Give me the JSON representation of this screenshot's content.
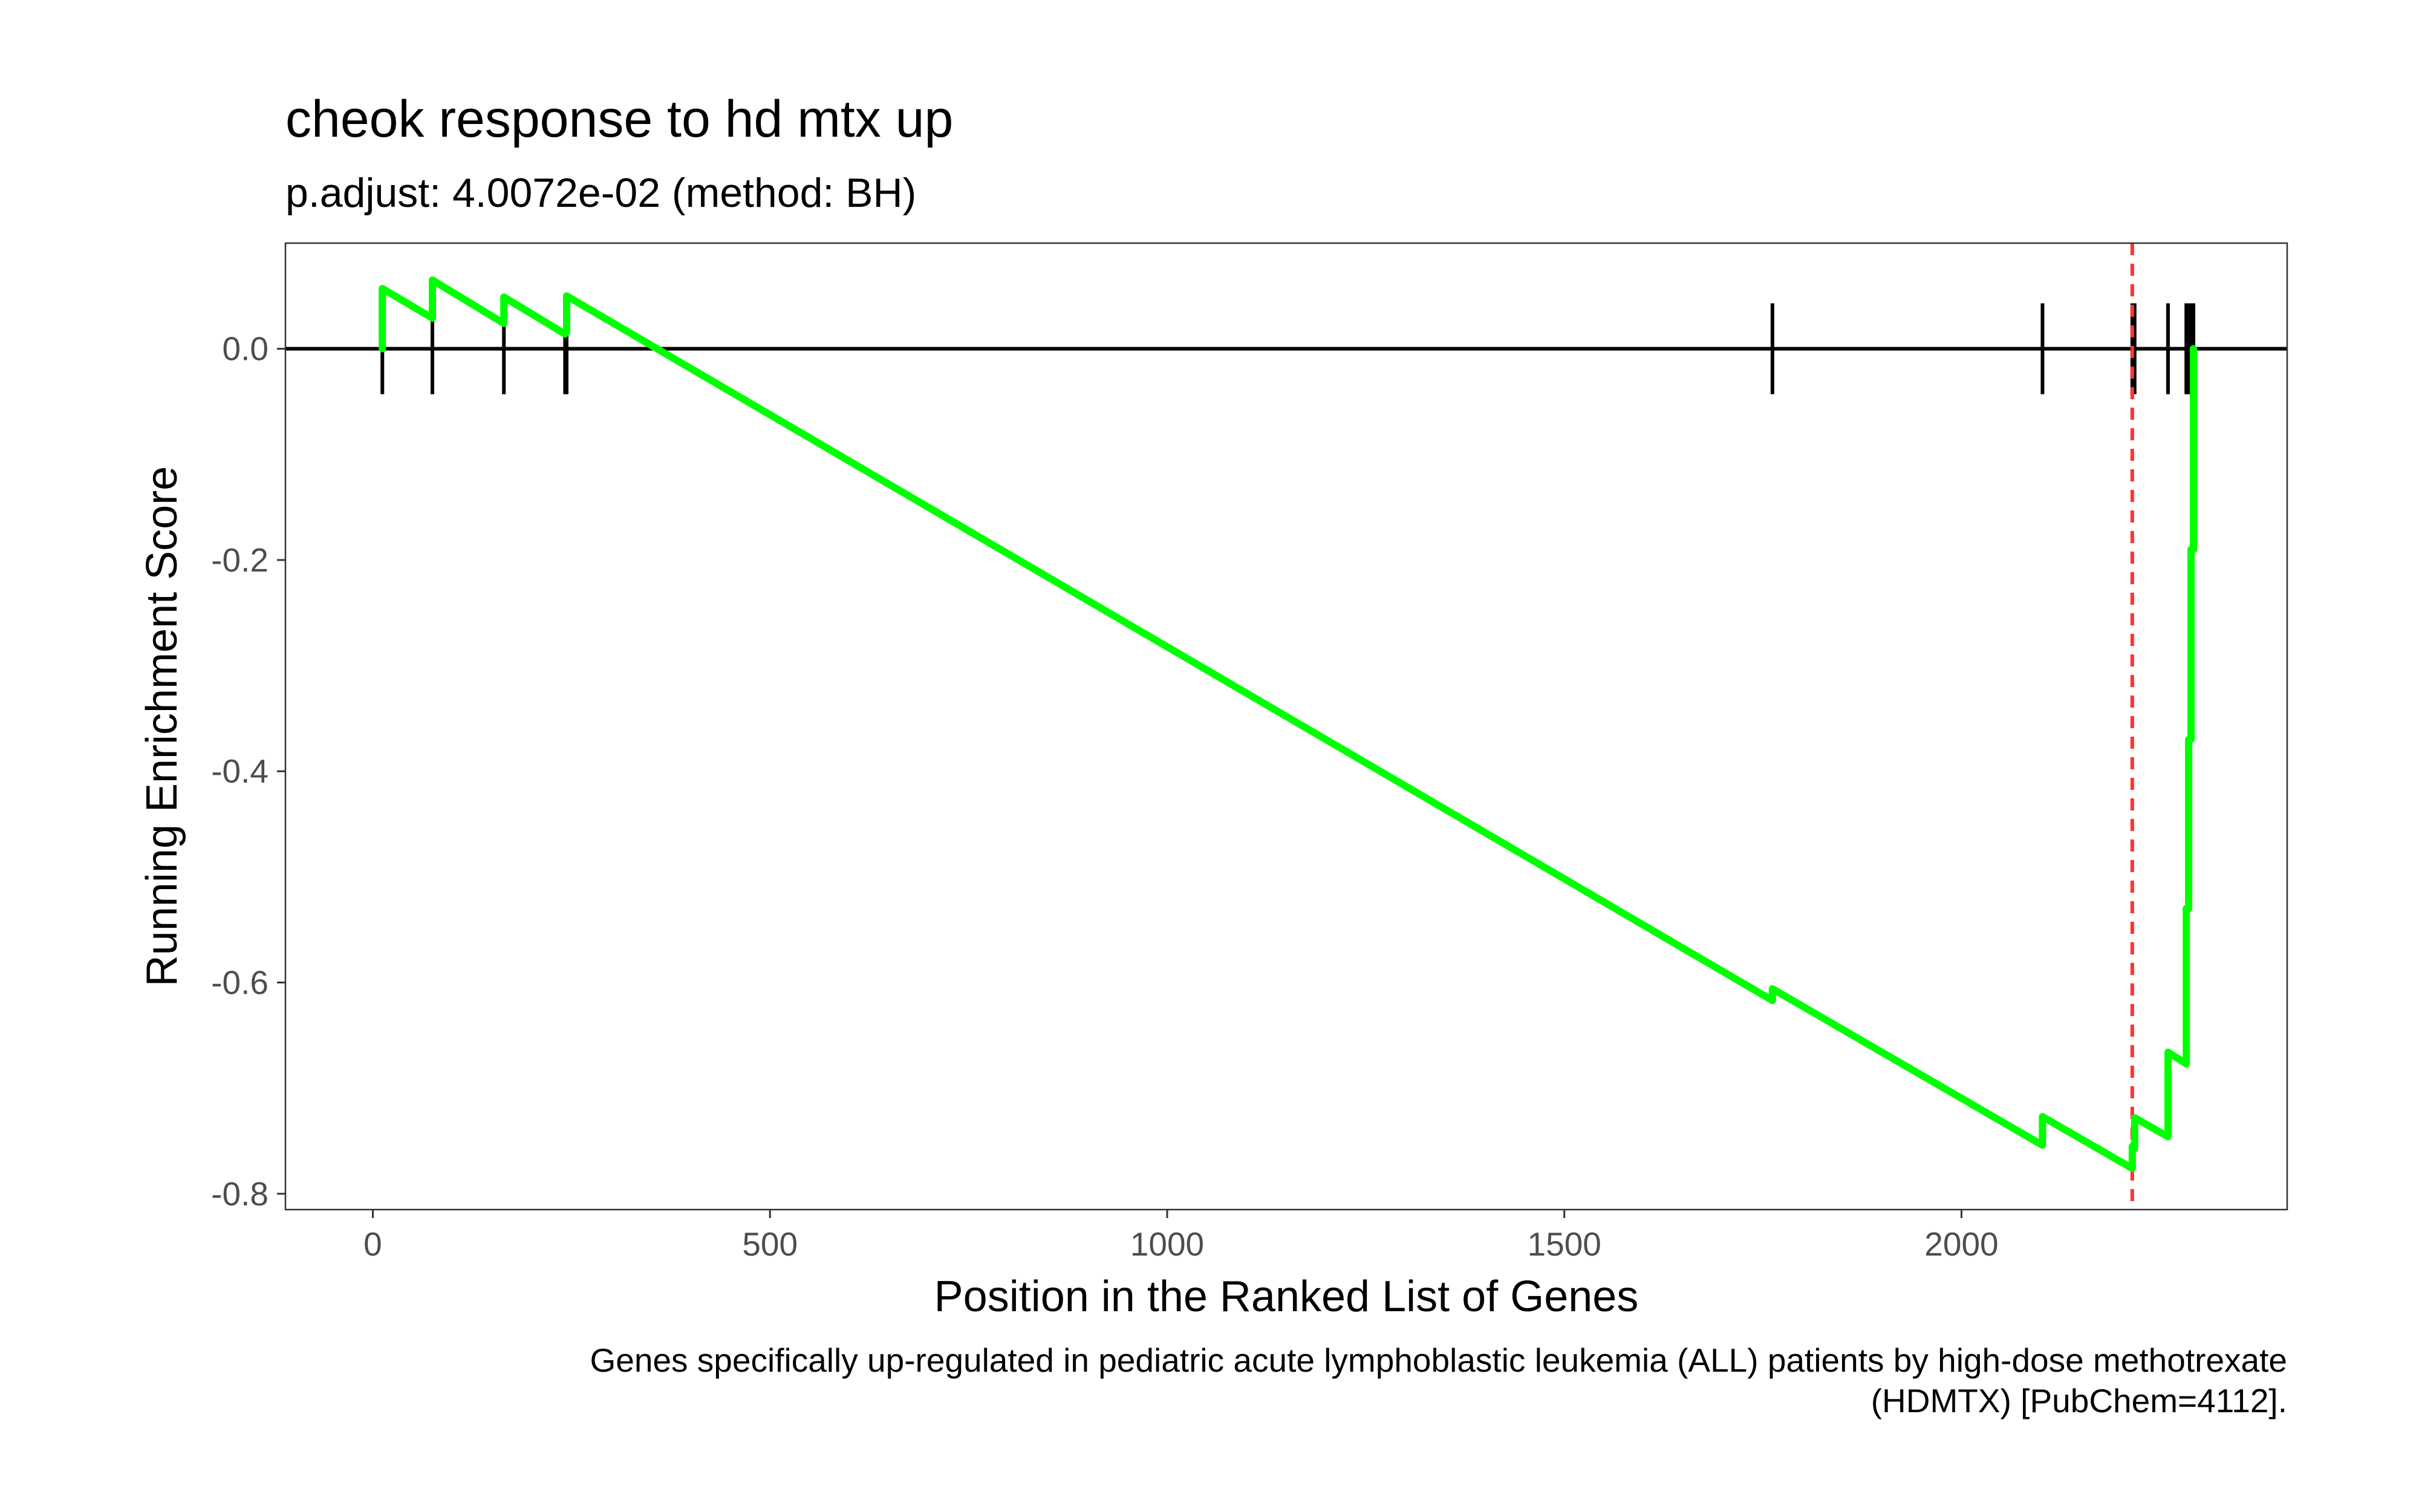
{
  "chart_data": {
    "type": "line",
    "title": "cheok response to hd mtx up",
    "subtitle": "p.adjust: 4.0072e-02 (method: BH)",
    "xlabel": "Position in the Ranked List of Genes",
    "ylabel": "Running Enrichment Score",
    "caption_lines": [
      "Genes specifically up-regulated in pediatric acute lymphoblastic leukemia (ALL) patients by high-dose methotrexate",
      "(HDMTX) [PubChem=4112]."
    ],
    "xlim": [
      -110,
      2410
    ],
    "ylim": [
      -0.815,
      0.1
    ],
    "x_ticks": [
      0,
      500,
      1000,
      1500,
      2000
    ],
    "x_tick_labels": [
      "0",
      "500",
      "1000",
      "1500",
      "2000"
    ],
    "y_ticks": [
      0.0,
      -0.2,
      -0.4,
      -0.6,
      -0.8
    ],
    "y_tick_labels": [
      "0.0",
      "-0.2",
      "-0.4",
      "-0.6",
      "-0.8"
    ],
    "grid": false,
    "series": [
      {
        "color": "#00FF00",
        "points": [
          [
            12,
            0.0
          ],
          [
            12,
            0.057
          ],
          [
            75,
            0.029
          ],
          [
            75,
            0.065
          ],
          [
            165,
            0.024
          ],
          [
            165,
            0.049
          ],
          [
            242,
            0.014
          ],
          [
            244,
            0.016
          ],
          [
            244,
            0.05
          ],
          [
            1762,
            -0.617
          ],
          [
            1762,
            -0.606
          ],
          [
            2102,
            -0.754
          ],
          [
            2102,
            -0.727
          ],
          [
            2215,
            -0.776
          ],
          [
            2215,
            -0.755
          ],
          [
            2218,
            -0.757
          ],
          [
            2218,
            -0.728
          ],
          [
            2260,
            -0.746
          ],
          [
            2260,
            -0.666
          ],
          [
            2283,
            -0.677
          ],
          [
            2283,
            -0.53
          ],
          [
            2286,
            -0.53
          ],
          [
            2286,
            -0.37
          ],
          [
            2289,
            -0.37
          ],
          [
            2289,
            -0.19
          ],
          [
            2292,
            -0.19
          ],
          [
            2292,
            0.0
          ]
        ]
      }
    ],
    "hit_positions": [
      12,
      75,
      165,
      242,
      244,
      1762,
      2102,
      2215,
      2218,
      2260,
      2283,
      2286,
      2289,
      2292
    ],
    "hit_tick_halfheight": 0.043,
    "max_deviation_position": 2215,
    "colors": {
      "line": "#00FF00",
      "max_deviation": "#FF3333",
      "zero_line": "#000000",
      "hits": "#000000",
      "panel_border": "#333333"
    }
  }
}
